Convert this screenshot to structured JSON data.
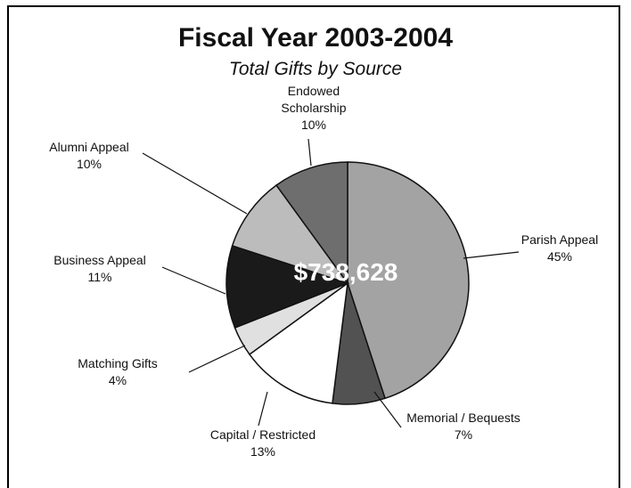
{
  "chart_data": {
    "type": "pie",
    "title": "Fiscal Year 2003-2004",
    "subtitle": "Total Gifts by Source",
    "center_label": "$738,628",
    "slices": [
      {
        "label": "Parish Appeal",
        "percent_label": "45%",
        "value": 45,
        "color": "#a3a3a3"
      },
      {
        "label": "Memorial / Bequests",
        "percent_label": "7%",
        "value": 7,
        "color": "#525252"
      },
      {
        "label": "Capital / Restricted",
        "percent_label": "13%",
        "value": 13,
        "color": "#ffffff"
      },
      {
        "label": "Matching Gifts",
        "percent_label": "4%",
        "value": 4,
        "color": "#e0e0e0"
      },
      {
        "label": "Business Appeal",
        "percent_label": "11%",
        "value": 11,
        "color": "#1a1a1a"
      },
      {
        "label": "Alumni Appeal",
        "percent_label": "10%",
        "value": 10,
        "color": "#bcbcbc"
      },
      {
        "label": "Endowed Scholarship",
        "label_lines": [
          "Endowed",
          "Scholarship"
        ],
        "percent_label": "10%",
        "value": 10,
        "color": "#6e6e6e"
      }
    ],
    "start": "12 o'clock",
    "direction": "clockwise"
  }
}
